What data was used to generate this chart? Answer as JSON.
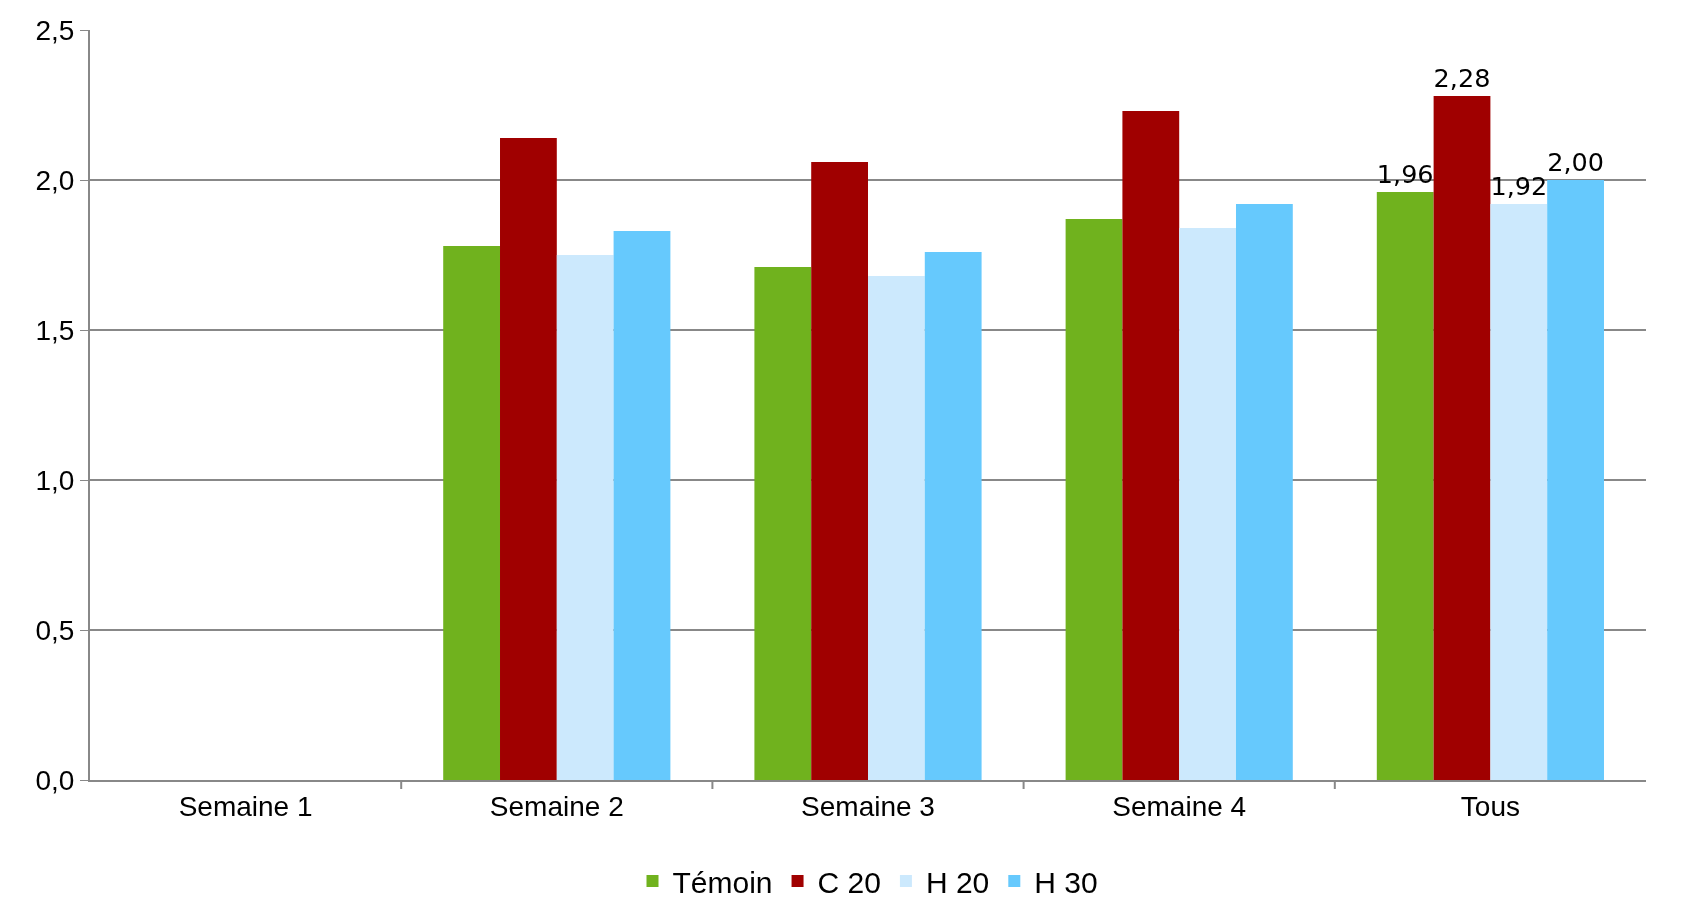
{
  "chart_data": {
    "type": "bar",
    "categories": [
      "Semaine 1",
      "Semaine 2",
      "Semaine 3",
      "Semaine 4",
      "Tous"
    ],
    "series": [
      {
        "name": "Témoin",
        "color": "#70b21e",
        "values": [
          null,
          1.78,
          1.71,
          1.87,
          1.96
        ],
        "value_labels": [
          null,
          null,
          null,
          null,
          "1,96"
        ]
      },
      {
        "name": "C 20",
        "color": "#a00000",
        "values": [
          null,
          2.14,
          2.06,
          2.23,
          2.28
        ],
        "value_labels": [
          null,
          null,
          null,
          null,
          "2,28"
        ]
      },
      {
        "name": "H 20",
        "color": "#cce9fd",
        "values": [
          null,
          1.75,
          1.68,
          1.84,
          1.92
        ],
        "value_labels": [
          null,
          null,
          null,
          null,
          "1,92"
        ]
      },
      {
        "name": "H 30",
        "color": "#66c9fd",
        "values": [
          null,
          1.83,
          1.76,
          1.92,
          2.0
        ],
        "value_labels": [
          null,
          null,
          null,
          null,
          "2,00"
        ]
      }
    ],
    "ylim": [
      0,
      2.5
    ],
    "yticks": [
      {
        "value": 0,
        "label": "0,0"
      },
      {
        "value": 0.5,
        "label": "0,5"
      },
      {
        "value": 1,
        "label": "1,0"
      },
      {
        "value": 1.5,
        "label": "1,5"
      },
      {
        "value": 2,
        "label": "2,0"
      },
      {
        "value": 2.5,
        "label": "2,5"
      }
    ],
    "grid": "y",
    "legend": "bottom"
  }
}
